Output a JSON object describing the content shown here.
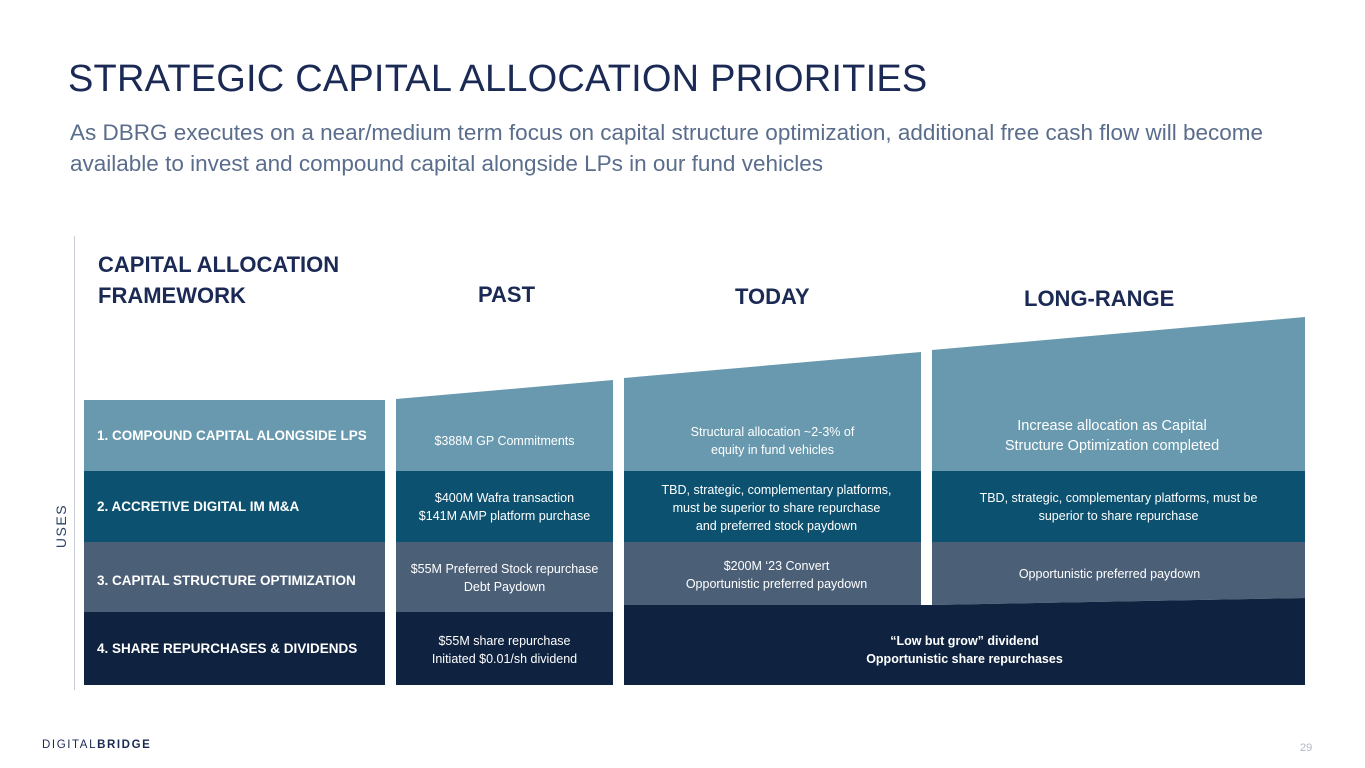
{
  "title": "STRATEGIC CAPITAL ALLOCATION PRIORITIES",
  "subtitle": "As DBRG executes on a near/medium term focus on capital structure optimization, additional free cash flow will become available to invest and compound capital alongside LPs in our fund vehicles",
  "framework_heading_line1": "CAPITAL ALLOCATION",
  "framework_heading_line2": "FRAMEWORK",
  "columns": {
    "past": "PAST",
    "today": "TODAY",
    "long_range": "LONG-RANGE"
  },
  "axis_label": "USES",
  "rows": [
    {
      "label": "1.  COMPOUND CAPITAL ALONGSIDE LPS"
    },
    {
      "label": "2.  ACCRETIVE DIGITAL IM M&A"
    },
    {
      "label": "3.  CAPITAL STRUCTURE OPTIMIZATION"
    },
    {
      "label": "4.  SHARE REPURCHASES & DIVIDENDS"
    }
  ],
  "past": {
    "row1": "$388M GP Commitments",
    "row2_line1": "$400M Wafra transaction",
    "row2_line2": "$141M AMP platform purchase",
    "row3_line1": "$55M Preferred Stock repurchase",
    "row3_line2": "Debt Paydown",
    "row4_line1": "$55M share repurchase",
    "row4_line2": "Initiated $0.01/sh dividend"
  },
  "today": {
    "row1_line1": "Structural allocation ~2-3% of",
    "row1_line2": "equity in fund vehicles",
    "row2_line1": "TBD, strategic, complementary platforms,",
    "row2_line2": "must be superior to share repurchase",
    "row2_line3": "and preferred stock paydown",
    "row3_line1": "$200M ‘23 Convert",
    "row3_line2": "Opportunistic preferred paydown"
  },
  "long_range": {
    "row1_line1": "Increase allocation as Capital",
    "row1_line2": "Structure Optimization completed",
    "row2_line1": "TBD, strategic, complementary platforms, must be",
    "row2_line2": "superior to share repurchase",
    "row3": "Opportunistic preferred paydown"
  },
  "combined_row4_line1": "“Low but grow” dividend",
  "combined_row4_line2": "Opportunistic share repurchases",
  "logo": {
    "part1": "DIGITAL",
    "part2": "BRIDGE"
  },
  "page_number": "29",
  "colors": {
    "row1": "#6899ae",
    "row2": "#0c5270",
    "row3": "#4b5f77",
    "row4": "#0f2340",
    "title": "#1b2a55",
    "subtitle": "#5a6d8c"
  }
}
